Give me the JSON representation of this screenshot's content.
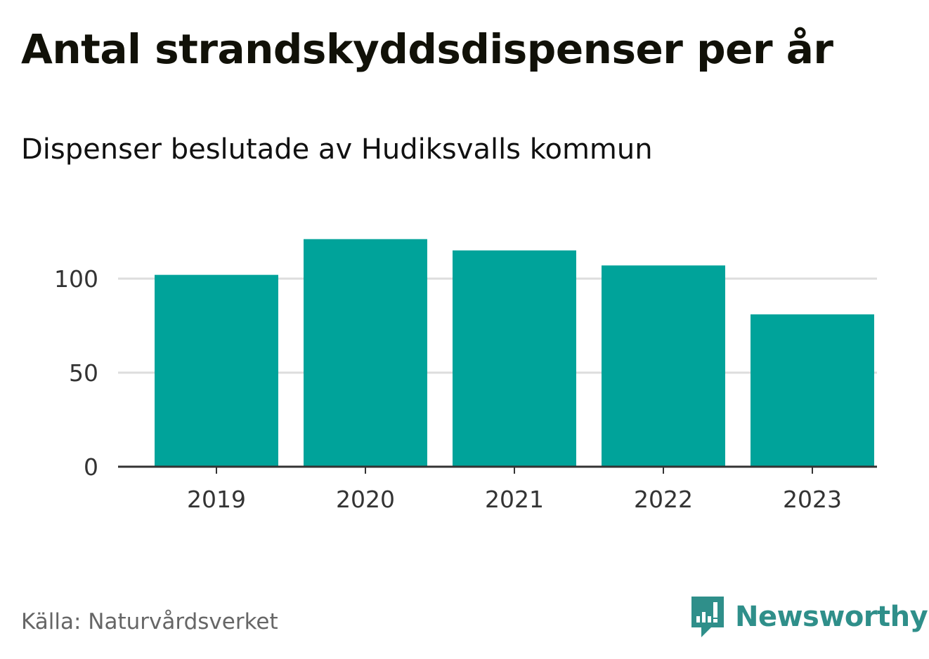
{
  "title": "Antal strandskyddsdispenser per år",
  "subtitle": "Dispenser beslutade av Hudiksvalls kommun",
  "source": "Källa: Naturvårdsverket",
  "brand": {
    "name": "Newsworthy",
    "color": "#2f8f8a",
    "icon": "newsworthy-logo-icon"
  },
  "colors": {
    "bar": "#00a39a",
    "grid": "#dddddd",
    "axis": "#333333"
  },
  "chart_data": {
    "type": "bar",
    "categories": [
      "2019",
      "2020",
      "2021",
      "2022",
      "2023"
    ],
    "values": [
      102,
      121,
      115,
      107,
      81
    ],
    "title": "Antal strandskyddsdispenser per år",
    "subtitle": "Dispenser beslutade av Hudiksvalls kommun",
    "xlabel": "",
    "ylabel": "",
    "ylim": [
      0,
      125
    ],
    "yticks": [
      0,
      50,
      100
    ],
    "grid": true,
    "legend": "none"
  }
}
